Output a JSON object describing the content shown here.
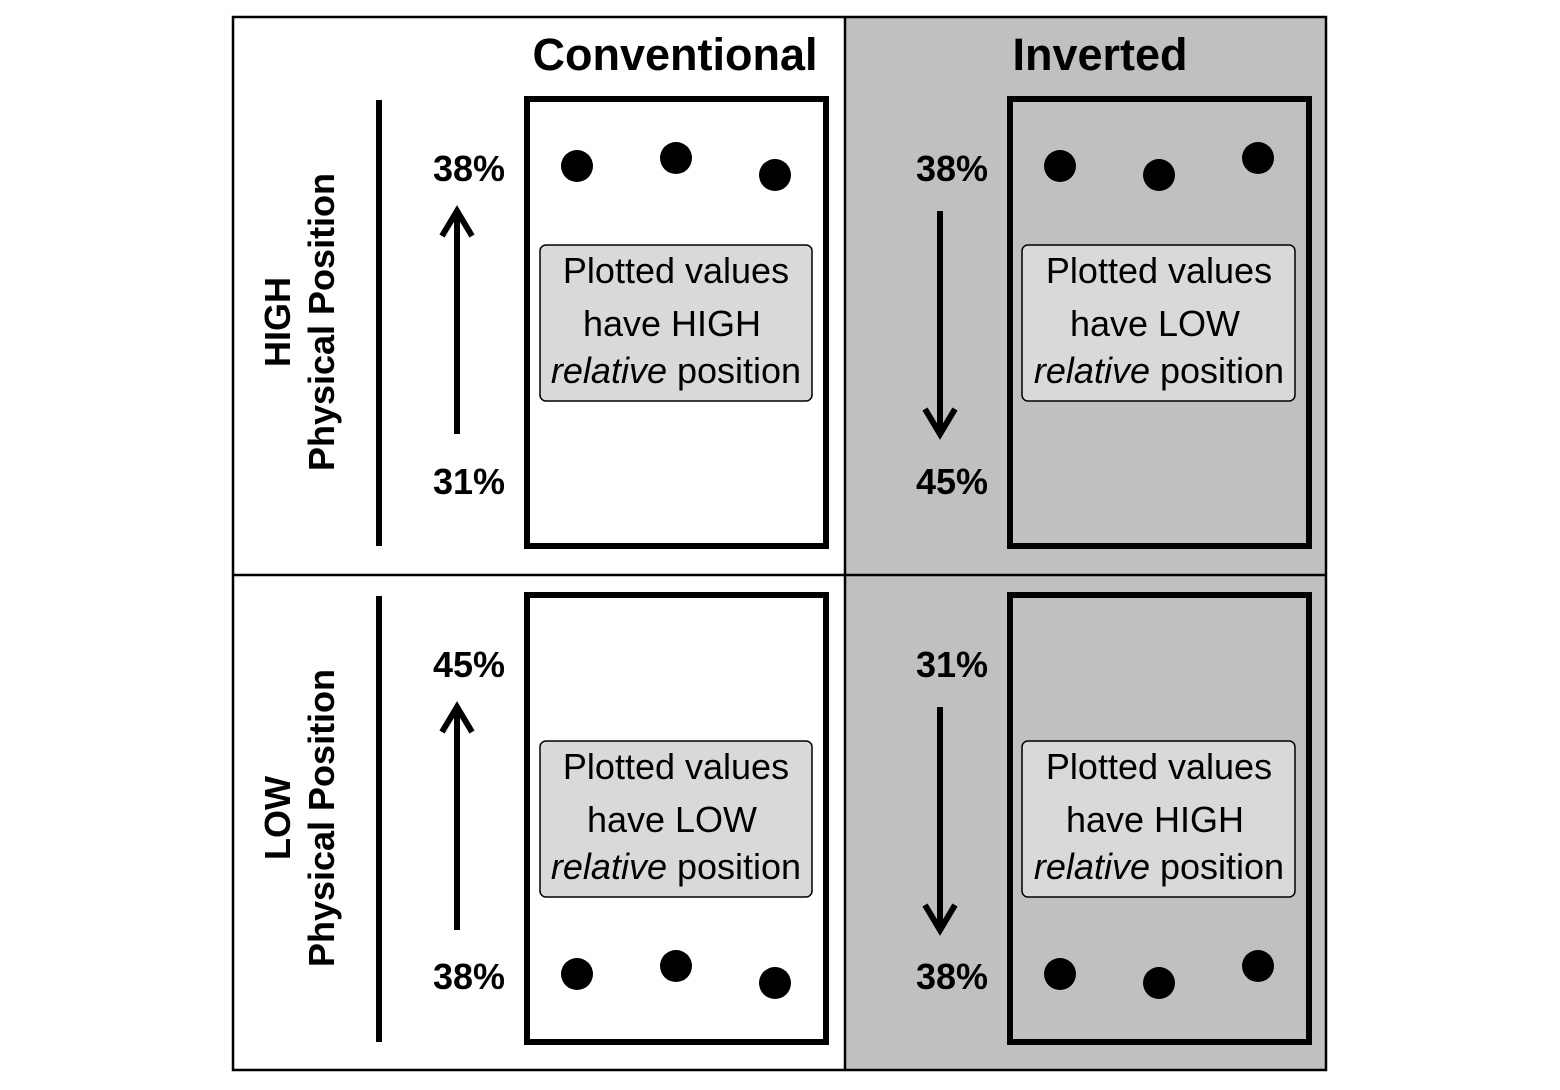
{
  "columns": {
    "conventional": {
      "title": "Conventional"
    },
    "inverted": {
      "title": "Inverted",
      "background": "#c0c0c0"
    }
  },
  "rows": {
    "high": {
      "label_top": "HIGH",
      "label_bottom": "Physical Position"
    },
    "low": {
      "label_top": "LOW",
      "label_bottom": "Physical Position"
    }
  },
  "panels": {
    "high_conventional": {
      "top_tick": "38%",
      "bottom_tick": "31%",
      "arrow": "up",
      "dots": "top",
      "text_line1": "Plotted values",
      "text_line2": "have HIGH",
      "text_line3_em": "relative",
      "text_line3_rest": " position"
    },
    "high_inverted": {
      "top_tick": "38%",
      "bottom_tick": "45%",
      "arrow": "down",
      "dots": "top",
      "text_line1": "Plotted values",
      "text_line2": "have LOW",
      "text_line3_em": "relative",
      "text_line3_rest": " position"
    },
    "low_conventional": {
      "top_tick": "45%",
      "bottom_tick": "38%",
      "arrow": "up",
      "dots": "bottom",
      "text_line1": "Plotted values",
      "text_line2": "have LOW",
      "text_line3_em": "relative",
      "text_line3_rest": " position"
    },
    "low_inverted": {
      "top_tick": "31%",
      "bottom_tick": "38%",
      "arrow": "down",
      "dots": "bottom",
      "text_line1": "Plotted values",
      "text_line2": "have HIGH",
      "text_line3_em": "relative",
      "text_line3_rest": " position"
    }
  },
  "colors": {
    "callout_fill": "#d9d9d9",
    "ink": "#000000"
  }
}
